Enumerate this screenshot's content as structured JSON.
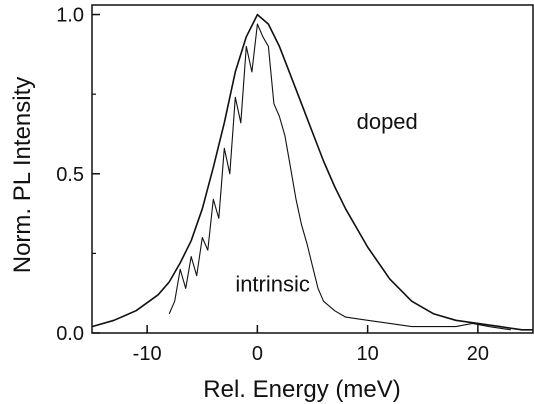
{
  "chart_data": {
    "type": "line",
    "title": "",
    "xlabel": "Rel. Energy (meV)",
    "ylabel": "Norm. PL Intensity",
    "xlim": [
      -15,
      25
    ],
    "ylim": [
      0,
      1.03
    ],
    "xticks": [
      -10,
      0,
      10,
      20
    ],
    "xtick_labels": [
      "-10",
      "0",
      "10",
      "20"
    ],
    "yticks": [
      0,
      0.5,
      1.0
    ],
    "ytick_labels": [
      "0.0",
      "0.5",
      "1.0"
    ],
    "grid": false,
    "legend": "none",
    "series": [
      {
        "name": "doped",
        "color": "#111111",
        "x": [
          -15,
          -13,
          -11,
          -9,
          -8,
          -7,
          -6,
          -5,
          -4,
          -3,
          -2,
          -1,
          0,
          1,
          2,
          3,
          4,
          5,
          6,
          7,
          8,
          10,
          12,
          14,
          16,
          18,
          20,
          22,
          24,
          25
        ],
        "y": [
          0.02,
          0.04,
          0.07,
          0.12,
          0.16,
          0.22,
          0.29,
          0.39,
          0.52,
          0.66,
          0.82,
          0.93,
          1.0,
          0.97,
          0.9,
          0.81,
          0.72,
          0.63,
          0.54,
          0.46,
          0.39,
          0.27,
          0.17,
          0.1,
          0.06,
          0.04,
          0.03,
          0.02,
          0.01,
          0.01
        ]
      },
      {
        "name": "intrinsic",
        "color": "#111111",
        "x": [
          -8,
          -7.5,
          -7,
          -6.5,
          -6,
          -5.5,
          -5,
          -4.5,
          -4,
          -3.5,
          -3,
          -2.5,
          -2,
          -1.5,
          -1,
          -0.5,
          0,
          0.5,
          1,
          1.5,
          2,
          2.5,
          3,
          3.5,
          4,
          4.5,
          5,
          5.5,
          6,
          7,
          8,
          10,
          12,
          14,
          16,
          18,
          19.5,
          21,
          23
        ],
        "y": [
          0.06,
          0.1,
          0.2,
          0.14,
          0.24,
          0.18,
          0.3,
          0.26,
          0.42,
          0.36,
          0.58,
          0.5,
          0.74,
          0.66,
          0.9,
          0.82,
          0.97,
          0.93,
          0.9,
          0.72,
          0.68,
          0.62,
          0.52,
          0.42,
          0.34,
          0.28,
          0.21,
          0.14,
          0.1,
          0.07,
          0.05,
          0.04,
          0.03,
          0.02,
          0.02,
          0.02,
          0.03,
          0.02,
          0.01
        ]
      }
    ],
    "annotations": [
      {
        "text": "doped",
        "x": 9,
        "y": 0.64
      },
      {
        "text": "intrinsic",
        "x": -2,
        "y": 0.13
      }
    ]
  }
}
